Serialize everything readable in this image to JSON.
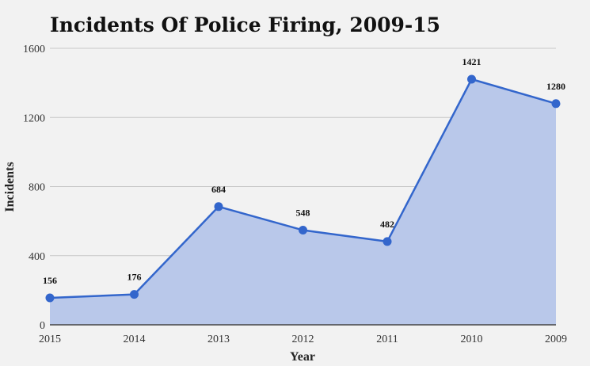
{
  "chart_data": {
    "type": "area",
    "title": "Incidents Of Police Firing, 2009-15",
    "xlabel": "Year",
    "ylabel": "Incidents",
    "categories": [
      "2015",
      "2014",
      "2013",
      "2012",
      "2011",
      "2010",
      "2009"
    ],
    "series": [
      {
        "values": [
          156,
          176,
          684,
          548,
          482,
          1421,
          1280
        ]
      }
    ],
    "data_labels": [
      "156",
      "176",
      "684",
      "548",
      "482",
      "1421",
      "1280"
    ],
    "ylim": [
      0,
      1600
    ],
    "yticks": [
      0,
      400,
      800,
      1200,
      1600
    ],
    "ytick_labels": [
      "0",
      "400",
      "800",
      "1200",
      "1600"
    ],
    "grid": true,
    "legend": "none",
    "colors": {
      "line": "#3366cc",
      "fill": "#b9c8ea",
      "background": "#f2f2f2"
    }
  }
}
